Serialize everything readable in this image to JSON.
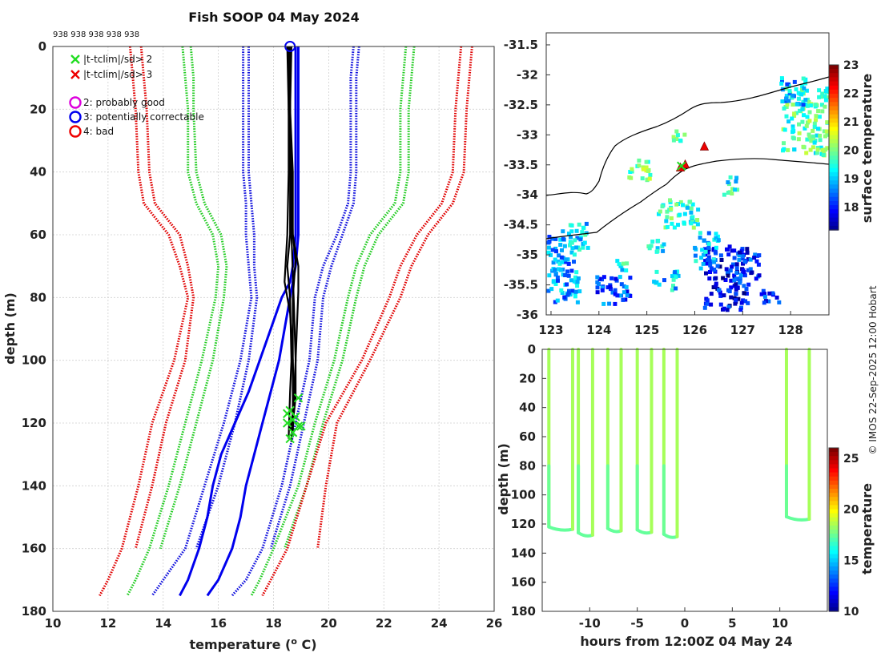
{
  "figure": {
    "title": "Fish SOOP 04 May 2024",
    "id_row": "938 938 938 938 938",
    "credit": "© IMOS 22-Sep-2025 12:00 Hobart"
  },
  "chart_data": [
    {
      "name": "profile",
      "type": "line",
      "xlabel": "temperature (",
      "xlabel_sup": "o",
      "xlabel_tail": " C)",
      "ylabel": "depth (m)",
      "xlim": [
        10,
        26
      ],
      "ylim": [
        180,
        0
      ],
      "xticks": [
        "10",
        "12",
        "14",
        "16",
        "18",
        "20",
        "22",
        "24",
        "26"
      ],
      "yticks": [
        "0",
        "20",
        "40",
        "60",
        "80",
        "100",
        "120",
        "140",
        "160",
        "180"
      ],
      "legend": [
        {
          "marker": "x",
          "color": "#22dd22",
          "text": "|t-tclim|/sd> 2"
        },
        {
          "marker": "x",
          "color": "#ee0000",
          "text": "|t-tclim|/sd> 3"
        },
        {
          "marker": "o",
          "color": "#dd00dd",
          "text": "2: probably good"
        },
        {
          "marker": "o",
          "color": "#0000ee",
          "text": "3: potentially correctable"
        },
        {
          "marker": "o",
          "color": "#ee0000",
          "text": "4: bad"
        }
      ],
      "climatology": [
        {
          "name": "red-left-a",
          "color": "#e00000",
          "style": "dotted",
          "d": [
            0,
            10,
            20,
            40,
            50,
            60,
            70,
            80,
            100,
            120,
            140,
            160,
            170,
            175
          ],
          "t": [
            12.8,
            12.9,
            13.0,
            13.1,
            13.3,
            14.2,
            14.6,
            14.9,
            14.4,
            13.6,
            13.1,
            12.5,
            12.0,
            11.7
          ]
        },
        {
          "name": "red-left-b",
          "color": "#e00000",
          "style": "dotted",
          "d": [
            0,
            10,
            20,
            40,
            50,
            60,
            70,
            80,
            100,
            120,
            140,
            160
          ],
          "t": [
            13.2,
            13.3,
            13.4,
            13.5,
            13.7,
            14.6,
            14.9,
            15.1,
            14.8,
            14.1,
            13.6,
            13.0
          ]
        },
        {
          "name": "green-left-a",
          "color": "#22cc22",
          "style": "dotted",
          "d": [
            0,
            10,
            20,
            40,
            50,
            60,
            70,
            80,
            100,
            120,
            140,
            160,
            170,
            175
          ],
          "t": [
            14.7,
            14.8,
            14.9,
            14.9,
            15.2,
            15.8,
            16.0,
            15.9,
            15.4,
            14.8,
            14.2,
            13.5,
            13.0,
            12.7
          ]
        },
        {
          "name": "green-left-b",
          "color": "#22cc22",
          "style": "dotted",
          "d": [
            0,
            10,
            20,
            40,
            50,
            60,
            70,
            80,
            100,
            120,
            140,
            160
          ],
          "t": [
            15.0,
            15.1,
            15.1,
            15.2,
            15.5,
            16.1,
            16.3,
            16.2,
            15.8,
            15.2,
            14.6,
            13.9
          ]
        },
        {
          "name": "blue-left-a",
          "color": "#1010dd",
          "style": "dotted",
          "d": [
            0,
            10,
            20,
            40,
            50,
            60,
            70,
            80,
            100,
            120,
            140,
            160,
            170,
            175
          ],
          "t": [
            16.9,
            16.9,
            16.9,
            16.9,
            17.0,
            17.0,
            17.1,
            17.2,
            16.8,
            16.2,
            15.5,
            14.8,
            14.0,
            13.6
          ]
        },
        {
          "name": "blue-left-b",
          "color": "#1010dd",
          "style": "dotted",
          "d": [
            0,
            10,
            20,
            40,
            50,
            60,
            70,
            80,
            100,
            120,
            140,
            160
          ],
          "t": [
            17.1,
            17.1,
            17.1,
            17.1,
            17.2,
            17.3,
            17.3,
            17.4,
            17.1,
            16.6,
            16.0,
            15.2
          ]
        },
        {
          "name": "blue-right-a",
          "color": "#1010dd",
          "style": "dotted",
          "d": [
            0,
            10,
            20,
            40,
            50,
            60,
            70,
            80,
            100,
            120,
            140,
            160,
            170,
            175
          ],
          "t": [
            20.9,
            20.8,
            20.8,
            20.8,
            20.7,
            20.3,
            19.8,
            19.5,
            19.3,
            18.8,
            18.3,
            17.6,
            17.0,
            16.5
          ]
        },
        {
          "name": "blue-right-b",
          "color": "#1010dd",
          "style": "dotted",
          "d": [
            0,
            10,
            20,
            40,
            50,
            60,
            70,
            80,
            100,
            120,
            140,
            160
          ],
          "t": [
            21.1,
            21.0,
            21.0,
            21.0,
            20.9,
            20.5,
            20.1,
            19.8,
            19.6,
            19.1,
            18.6,
            17.9
          ]
        },
        {
          "name": "green-right-a",
          "color": "#22cc22",
          "style": "dotted",
          "d": [
            0,
            10,
            20,
            40,
            50,
            60,
            70,
            80,
            100,
            120,
            140,
            160,
            170,
            175
          ],
          "t": [
            22.8,
            22.7,
            22.6,
            22.6,
            22.4,
            21.5,
            21.0,
            20.7,
            20.2,
            19.5,
            18.9,
            18.0,
            17.5,
            17.2
          ]
        },
        {
          "name": "green-right-b",
          "color": "#22cc22",
          "style": "dotted",
          "d": [
            0,
            10,
            20,
            40,
            50,
            60,
            70,
            80,
            100,
            120,
            140,
            160
          ],
          "t": [
            23.1,
            23.0,
            22.9,
            22.9,
            22.7,
            21.8,
            21.3,
            21.0,
            20.5,
            19.8,
            19.2,
            18.4
          ]
        },
        {
          "name": "red-right-a",
          "color": "#e00000",
          "style": "dotted",
          "d": [
            0,
            10,
            20,
            40,
            50,
            60,
            70,
            80,
            100,
            120,
            140,
            160,
            170,
            175
          ],
          "t": [
            24.8,
            24.7,
            24.6,
            24.5,
            24.1,
            23.2,
            22.6,
            22.2,
            21.2,
            19.9,
            19.2,
            18.5,
            17.9,
            17.6
          ]
        },
        {
          "name": "red-right-b",
          "color": "#e00000",
          "style": "dotted",
          "d": [
            0,
            10,
            20,
            40,
            50,
            60,
            70,
            80,
            100,
            120,
            140,
            160
          ],
          "t": [
            25.2,
            25.1,
            25.0,
            24.9,
            24.5,
            23.6,
            23.0,
            22.6,
            21.5,
            20.3,
            19.9,
            19.6
          ]
        }
      ],
      "mean_profiles": [
        {
          "name": "blue-solid-a",
          "color": "#0000ee",
          "style": "solid",
          "d": [
            0,
            60,
            70,
            75,
            80,
            90,
            100,
            110,
            120,
            130,
            140,
            150,
            160,
            170,
            175
          ],
          "t": [
            18.8,
            18.8,
            18.7,
            18.6,
            18.3,
            17.9,
            17.5,
            17.1,
            16.6,
            16.1,
            15.8,
            15.6,
            15.3,
            14.9,
            14.6
          ]
        },
        {
          "name": "blue-solid-b",
          "color": "#0000ee",
          "style": "solid",
          "d": [
            0,
            60,
            70,
            80,
            90,
            100,
            110,
            120,
            130,
            140,
            150,
            160,
            170,
            175
          ],
          "t": [
            18.9,
            18.9,
            18.8,
            18.6,
            18.4,
            18.2,
            17.9,
            17.6,
            17.3,
            17.0,
            16.8,
            16.5,
            16.0,
            15.6
          ]
        }
      ],
      "observed_profiles": [
        {
          "name": "black-a",
          "t": [
            18.55,
            18.55,
            18.6,
            18.6,
            18.5,
            18.6,
            18.65,
            18.6,
            18.55
          ],
          "d": [
            0,
            20,
            40,
            60,
            70,
            80,
            100,
            110,
            125
          ]
        },
        {
          "name": "black-b",
          "t": [
            18.6,
            18.6,
            18.65,
            18.7,
            18.8,
            18.7,
            18.7,
            18.75,
            18.6
          ],
          "d": [
            0,
            20,
            40,
            60,
            68,
            80,
            100,
            115,
            122
          ]
        },
        {
          "name": "black-c",
          "t": [
            18.65,
            18.6,
            18.7,
            18.7,
            18.9,
            18.9,
            18.8,
            18.8,
            18.7
          ],
          "d": [
            0,
            20,
            40,
            60,
            70,
            78,
            100,
            112,
            120
          ]
        },
        {
          "name": "black-d",
          "t": [
            18.5,
            18.55,
            18.55,
            18.5,
            18.4,
            18.6,
            18.7,
            18.7,
            18.65
          ],
          "d": [
            0,
            20,
            40,
            60,
            75,
            85,
            100,
            115,
            126
          ]
        },
        {
          "name": "black-e",
          "t": [
            18.6,
            18.6,
            18.6,
            18.65,
            18.7,
            18.75,
            18.8,
            18.75,
            18.7
          ],
          "d": [
            0,
            20,
            40,
            60,
            72,
            85,
            100,
            110,
            123
          ]
        }
      ],
      "flags_green_x": [
        [
          18.6,
          116
        ],
        [
          18.8,
          118
        ],
        [
          18.5,
          120
        ],
        [
          18.9,
          121
        ],
        [
          18.7,
          123
        ],
        [
          18.6,
          125
        ],
        [
          18.9,
          112
        ],
        [
          18.7,
          119
        ],
        [
          18.5,
          117
        ],
        [
          19.0,
          121
        ]
      ],
      "flag_circle_top": [
        18.6,
        0
      ]
    },
    {
      "name": "map",
      "type": "heatmap",
      "xlim": [
        122.9,
        128.8
      ],
      "ylim": [
        -36,
        -31.3
      ],
      "xticks": [
        "123",
        "124",
        "125",
        "126",
        "127",
        "128"
      ],
      "yticks": [
        "-31.5",
        "-32",
        "-32.5",
        "-33",
        "-33.5",
        "-34",
        "-34.5",
        "-35",
        "-35.5",
        "-36"
      ],
      "colorbar": {
        "label": "surface temperature",
        "ticks": [
          "18",
          "19",
          "20",
          "21",
          "22",
          "23"
        ],
        "range": [
          17.2,
          23.0
        ]
      },
      "track_points": [
        [
          125.7,
          -33.55
        ],
        [
          125.8,
          -33.5
        ],
        [
          126.2,
          -33.2
        ]
      ]
    },
    {
      "name": "timeseries",
      "type": "scatter",
      "xlabel": "hours from 12:00Z 04 May 24",
      "ylabel": "depth (m)",
      "xlim": [
        -15,
        15
      ],
      "ylim": [
        180,
        0
      ],
      "xticks": [
        "-10",
        "-5",
        "0",
        "5",
        "10"
      ],
      "yticks": [
        "0",
        "20",
        "40",
        "60",
        "80",
        "100",
        "120",
        "140",
        "160",
        "180"
      ],
      "colorbar": {
        "label": "temperature",
        "ticks": [
          "10",
          "15",
          "20",
          "25"
        ],
        "range": [
          10,
          26
        ]
      },
      "casts": [
        {
          "t0": -14.3,
          "t1": -11.8,
          "dmax": 122
        },
        {
          "t0": -11.2,
          "t1": -9.7,
          "dmax": 126
        },
        {
          "t0": -8.1,
          "t1": -6.7,
          "dmax": 123
        },
        {
          "t0": -5.0,
          "t1": -3.5,
          "dmax": 124
        },
        {
          "t0": -2.2,
          "t1": -0.8,
          "dmax": 127
        },
        {
          "t0": 10.7,
          "t1": 13.1,
          "dmax": 115
        }
      ]
    }
  ]
}
